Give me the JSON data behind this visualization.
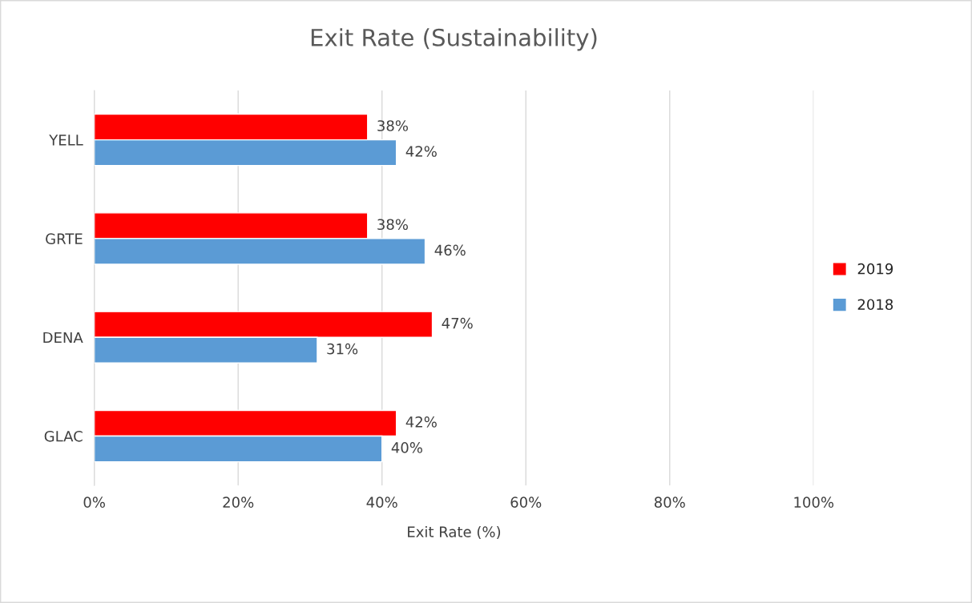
{
  "chart_data": {
    "type": "bar",
    "orientation": "horizontal",
    "title": "Exit Rate (Sustainability)",
    "xlabel": "Exit Rate (%)",
    "categories": [
      "YELL",
      "GRTE",
      "DENA",
      "GLAC"
    ],
    "series": [
      {
        "name": "2019",
        "color": "#ff0000",
        "values": [
          38,
          38,
          47,
          42
        ],
        "value_labels": [
          "38%",
          "38%",
          "47%",
          "42%"
        ]
      },
      {
        "name": "2018",
        "color": "#5b9bd5",
        "values": [
          42,
          46,
          31,
          40
        ],
        "value_labels": [
          "42%",
          "46%",
          "31%",
          "40%"
        ]
      }
    ],
    "xlim": [
      0,
      100
    ],
    "xticks": [
      {
        "value": 0,
        "label": "0%"
      },
      {
        "value": 20,
        "label": "20%"
      },
      {
        "value": 40,
        "label": "40%"
      },
      {
        "value": 60,
        "label": "60%"
      },
      {
        "value": 80,
        "label": "80%"
      },
      {
        "value": 100,
        "label": "100%"
      }
    ],
    "grid": "x",
    "legend": "right"
  }
}
